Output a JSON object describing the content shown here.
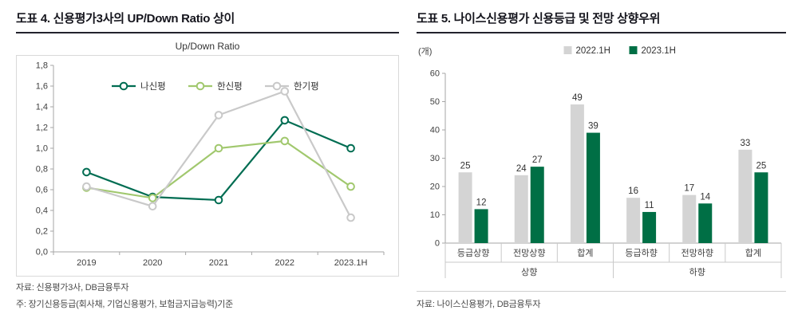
{
  "left": {
    "title": "도표 4. 신용평가3사의 UP/Down Ratio 상이",
    "chart_title": "Up/Down Ratio",
    "source": "자료: 신용평가3사, DB금융투자",
    "note": "주: 장기신용등급(회사채, 기업신용평가, 보험금지급능력)기준"
  },
  "right": {
    "title": "도표 5. 나이스신용평가 신용등급 및 전망 상향우위",
    "source": "자료: 나이스신용평가, DB금융투자"
  },
  "chart_data": [
    {
      "type": "line",
      "title": "Up/Down Ratio",
      "x": [
        "2019",
        "2020",
        "2021",
        "2022",
        "2023.1H"
      ],
      "series": [
        {
          "name": "나신평",
          "color": "#006d52",
          "values": [
            0.77,
            0.53,
            0.5,
            1.27,
            1.0
          ]
        },
        {
          "name": "한신평",
          "color": "#a1c86e",
          "values": [
            0.62,
            0.52,
            1.0,
            1.07,
            0.63
          ]
        },
        {
          "name": "한기평",
          "color": "#c9c9c9",
          "values": [
            0.63,
            0.44,
            1.32,
            1.55,
            0.33
          ]
        }
      ],
      "ylim": [
        0,
        1.8
      ],
      "ytick_step": 0.2,
      "yticks": [
        "0,0",
        "0,2",
        "0,4",
        "0,6",
        "0,8",
        "1,0",
        "1,2",
        "1,4",
        "1,6",
        "1,8"
      ],
      "grid": false,
      "legend_position": "top-center-inside"
    },
    {
      "type": "bar",
      "ylabel": "(개)",
      "categories": [
        "등급상향",
        "전망상향",
        "합계",
        "등급하향",
        "전망하향",
        "합계"
      ],
      "groups": [
        {
          "label": "상향",
          "span": 3
        },
        {
          "label": "하향",
          "span": 3
        }
      ],
      "series": [
        {
          "name": "2022.1H",
          "color": "#d4d4d4",
          "values": [
            25,
            24,
            49,
            16,
            17,
            33
          ]
        },
        {
          "name": "2023.1H",
          "color": "#006f45",
          "values": [
            12,
            27,
            39,
            11,
            14,
            25
          ]
        }
      ],
      "ylim": [
        0,
        60
      ],
      "ytick_step": 10,
      "grid": false,
      "legend_position": "top-center"
    }
  ]
}
